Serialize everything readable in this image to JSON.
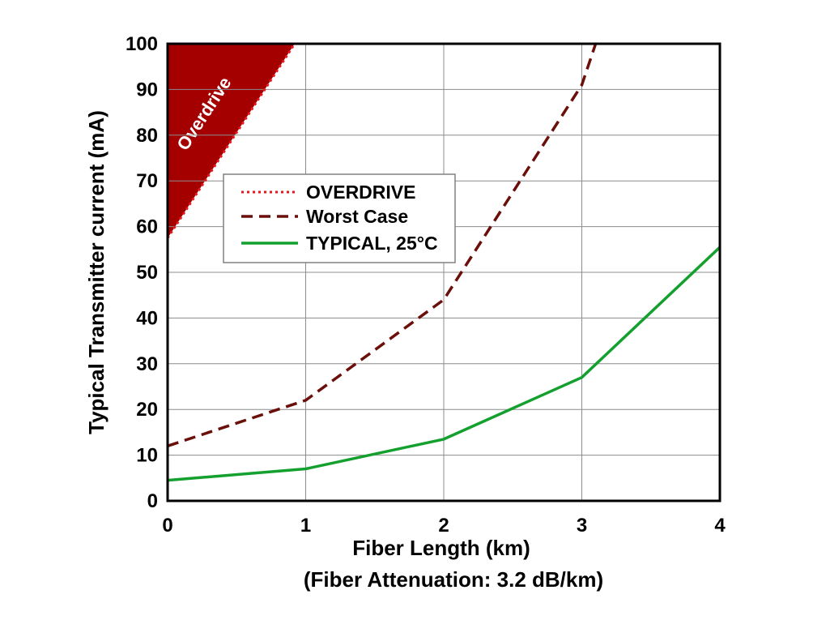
{
  "chart_data": {
    "type": "line",
    "xlabel": "Fiber Length (km)",
    "xlabel2": "(Fiber Attenuation: 3.2 dB/km)",
    "ylabel": "Typical Transmitter current (mA)",
    "xlim": [
      0,
      4
    ],
    "ylim": [
      0,
      100
    ],
    "xticks": [
      0,
      1,
      2,
      3,
      4
    ],
    "yticks": [
      0,
      10,
      20,
      30,
      40,
      50,
      60,
      70,
      80,
      90,
      100
    ],
    "grid": true,
    "legend_position": "upper-left",
    "region": {
      "label": "Overdrive",
      "color": "#a50000",
      "boundary": [
        [
          0,
          57.5
        ],
        [
          0.92,
          100
        ]
      ]
    },
    "series": [
      {
        "name": "OVERDRIVE",
        "style": "dotted",
        "color": "#e8151b",
        "x": [
          0,
          0.92
        ],
        "y": [
          57.5,
          100
        ]
      },
      {
        "name": "Worst Case",
        "style": "dashed",
        "color": "#6b0f0a",
        "x": [
          0,
          1,
          2,
          3,
          3.1
        ],
        "y": [
          12,
          22,
          44,
          91,
          100
        ]
      },
      {
        "name": "TYPICAL, 25°C",
        "style": "solid",
        "color": "#14a02e",
        "x": [
          0,
          1,
          2,
          3,
          4
        ],
        "y": [
          4.5,
          7,
          13.5,
          27,
          55.5
        ]
      }
    ]
  }
}
